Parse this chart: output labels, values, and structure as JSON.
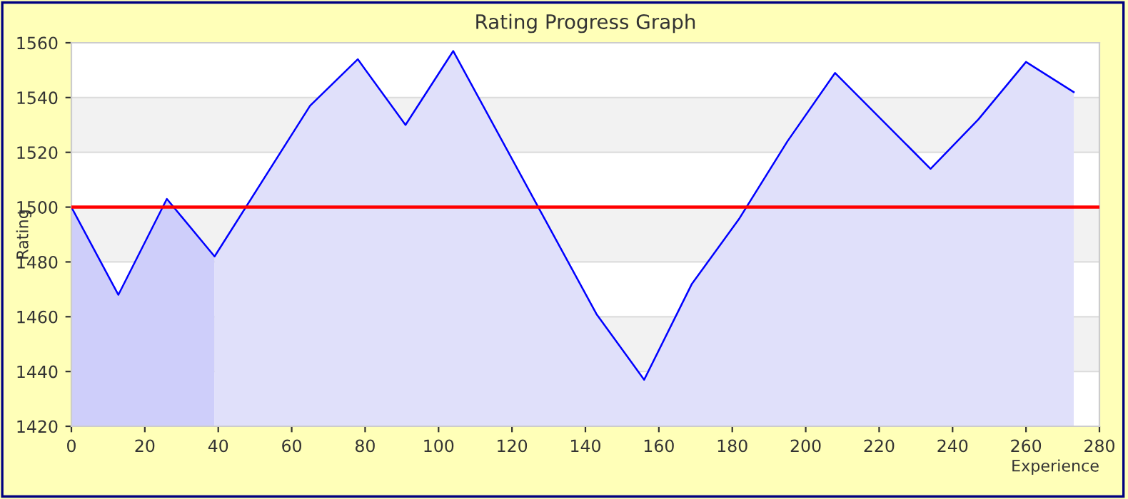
{
  "chart_data": {
    "type": "area",
    "title": "Rating Progress Graph",
    "xlabel": "Experience",
    "ylabel": "Rating",
    "series": [
      {
        "color": "#cecefa",
        "x": [
          0,
          12.8,
          26,
          39
        ],
        "values": [
          1500,
          1468,
          1503,
          1482
        ]
      },
      {
        "color": "#e0e0fa",
        "x": [
          39,
          65,
          78,
          91,
          104,
          143,
          156,
          169,
          182,
          195,
          208,
          234,
          247,
          260,
          273
        ],
        "values": [
          1482,
          1537,
          1554,
          1530,
          1557,
          1461,
          1437,
          1472,
          1496,
          1524,
          1549,
          1514,
          1532,
          1553,
          1542
        ]
      },
      {
        "type": "line",
        "color": "#0000ff",
        "x": [
          0,
          12.8,
          26,
          39,
          65,
          78,
          91,
          104,
          143,
          156,
          169,
          182,
          195,
          208,
          234,
          247,
          260,
          273
        ],
        "values": [
          1500,
          1468,
          1503,
          1482,
          1537,
          1554,
          1530,
          1557,
          1461,
          1437,
          1472,
          1496,
          1524,
          1549,
          1514,
          1532,
          1553,
          1542
        ]
      }
    ],
    "xlim": [
      0,
      280
    ],
    "xticks": [
      0,
      20,
      40,
      60,
      80,
      100,
      120,
      140,
      160,
      180,
      200,
      220,
      240,
      260,
      280
    ],
    "ylim": [
      1420,
      1560
    ],
    "yticks": [
      1420,
      1440,
      1460,
      1480,
      1500,
      1520,
      1540,
      1560
    ],
    "ref_lines": [
      {
        "axis": "y",
        "value": 1500,
        "color": "#ff0000"
      }
    ],
    "grid": "y",
    "legend": false
  }
}
